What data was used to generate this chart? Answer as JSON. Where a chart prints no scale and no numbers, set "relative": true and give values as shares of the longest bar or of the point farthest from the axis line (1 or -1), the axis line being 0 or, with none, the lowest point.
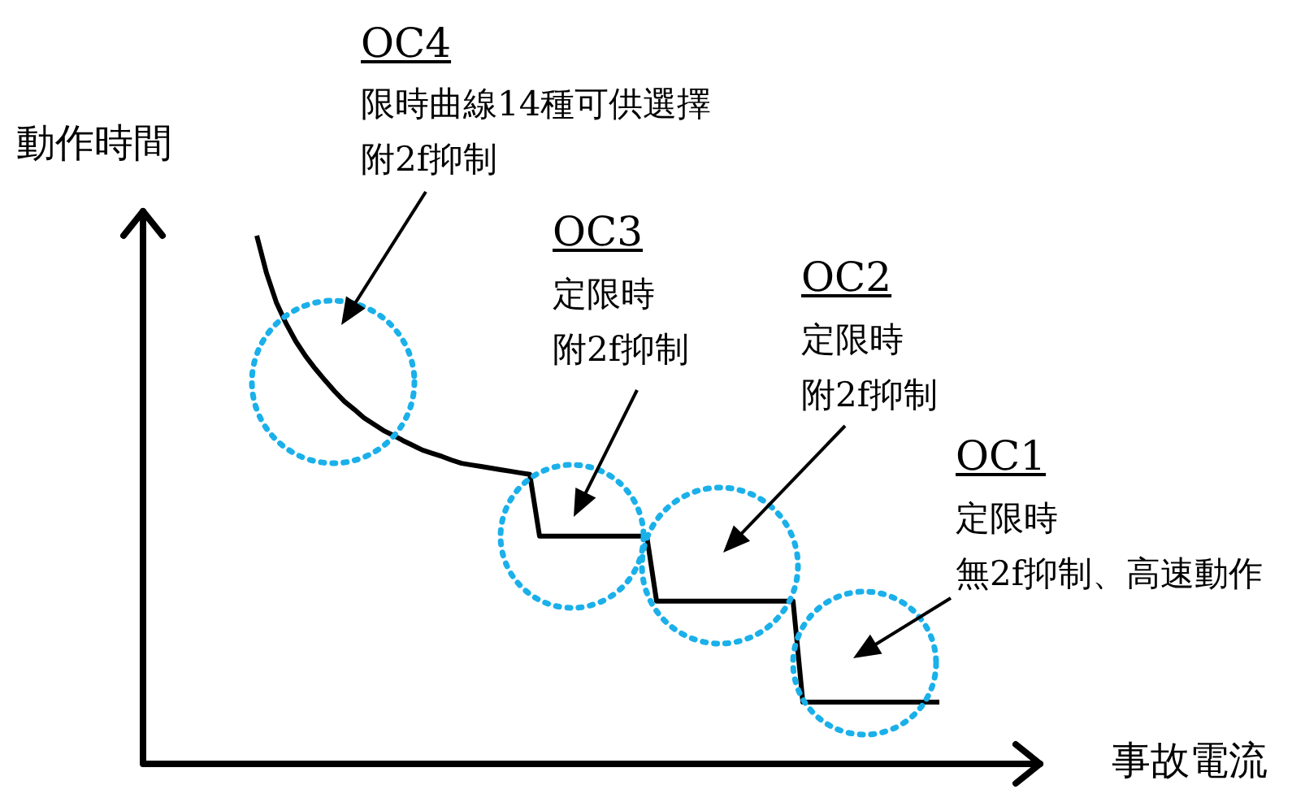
{
  "chart_data": {
    "type": "line",
    "relative": true,
    "categories": [
      null,
      null,
      null,
      null,
      null,
      null,
      null,
      null,
      null,
      null,
      null,
      null,
      null,
      null,
      null,
      null,
      null,
      null,
      null,
      null,
      null,
      null,
      null,
      null,
      null,
      null,
      null,
      null,
      null,
      null,
      null,
      null,
      null,
      null,
      null,
      null,
      null,
      null,
      null,
      null,
      null,
      null,
      null,
      null,
      null,
      null,
      null,
      null,
      null,
      null,
      null,
      null,
      null,
      null,
      null,
      null,
      null,
      null,
      null,
      null,
      null,
      null,
      null,
      null,
      null,
      null,
      null,
      null,
      null,
      null,
      null
    ],
    "values": [
      1.0,
      0.929,
      0.874,
      0.834,
      0.8,
      0.772,
      0.748,
      0.726,
      0.705,
      0.686,
      0.671,
      0.655,
      0.643,
      0.631,
      0.622,
      0.612,
      0.603,
      0.594,
      0.588,
      0.582,
      0.575,
      0.569,
      0.566,
      0.563,
      0.56,
      0.557,
      0.554,
      0.551,
      0.548,
      0.431,
      0.431,
      0.431,
      0.431,
      0.431,
      0.431,
      0.431,
      0.431,
      0.431,
      0.431,
      0.431,
      0.431,
      0.308,
      0.308,
      0.308,
      0.308,
      0.308,
      0.308,
      0.308,
      0.308,
      0.308,
      0.308,
      0.308,
      0.308,
      0.308,
      0.308,
      0.308,
      0.117,
      0.117,
      0.117,
      0.117,
      0.117,
      0.117,
      0.117,
      0.117,
      0.117,
      0.117,
      0.117,
      0.117,
      0.117,
      0.117,
      0.117
    ],
    "color": "#000000",
    "marker": "none",
    "legend": false,
    "xlabel": "事故電流",
    "ylabel": "動作時間",
    "annotations": [
      "OC4",
      "限時曲線14種可供選擇",
      "附2f抑制",
      "OC3",
      "定限時",
      "附2f抑制",
      "OC2",
      "定限時",
      "附2f抑制",
      "OC1",
      "定限時",
      "無2f抑制、高速動作"
    ]
  }
}
